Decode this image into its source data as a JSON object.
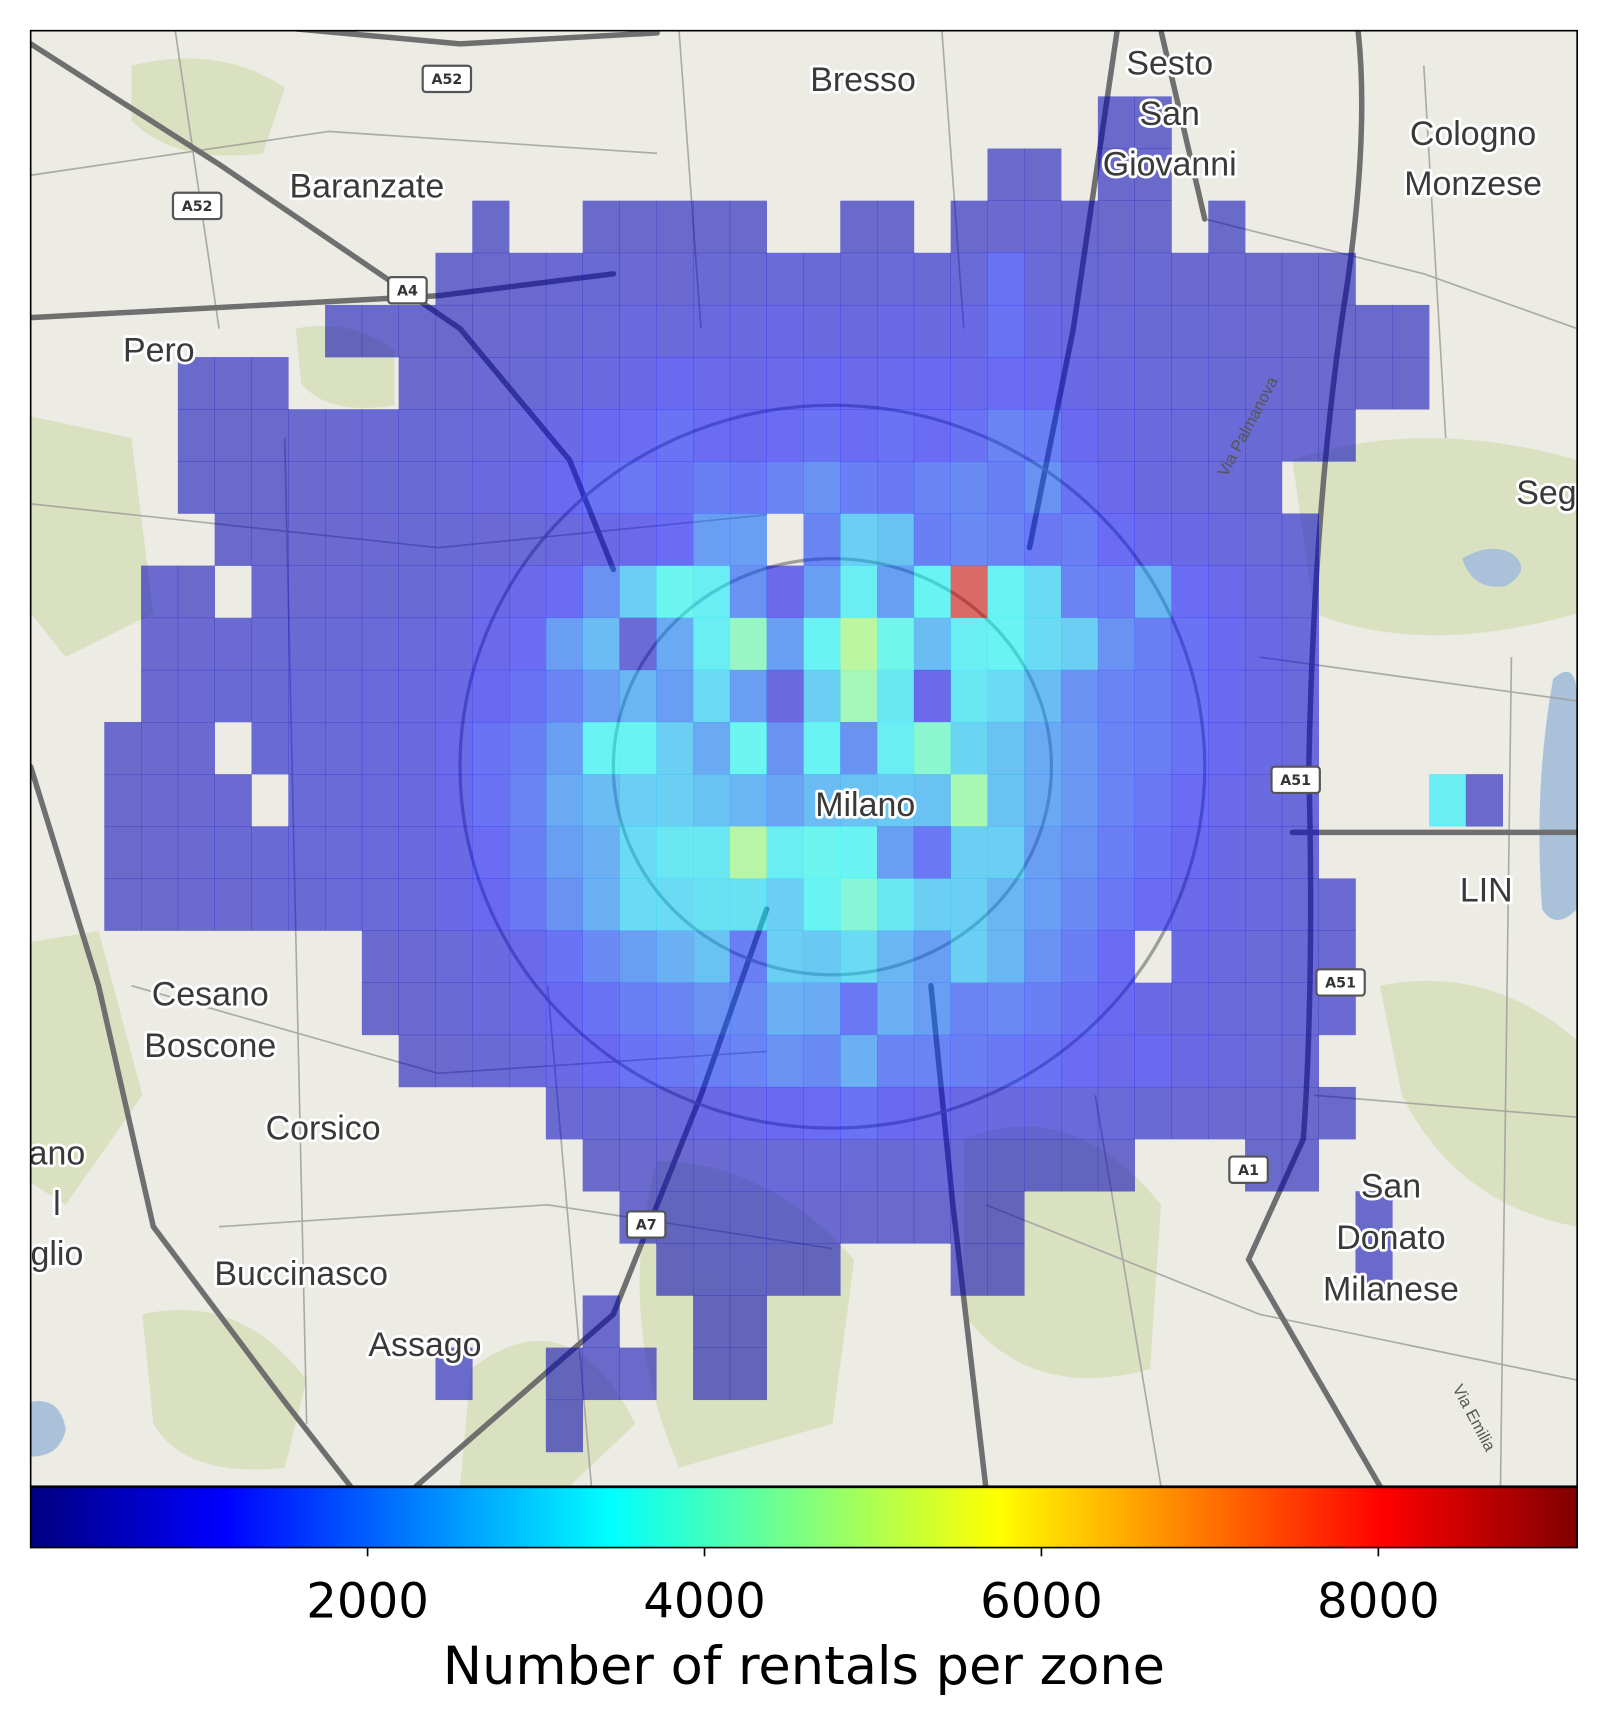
{
  "chart_data": {
    "type": "heatmap",
    "colormap": "jet",
    "z": [
      [
        null,
        null,
        null,
        null,
        null,
        null,
        null,
        null,
        null,
        null,
        null,
        null,
        null,
        null,
        null,
        null,
        null,
        null,
        null,
        null,
        null,
        null,
        null,
        null,
        null,
        null,
        null,
        null,
        null,
        500,
        450,
        null,
        null,
        null,
        null,
        null,
        null,
        null,
        null,
        null,
        null,
        null
      ],
      [
        null,
        null,
        null,
        null,
        null,
        null,
        null,
        null,
        null,
        null,
        null,
        null,
        null,
        null,
        null,
        null,
        null,
        null,
        null,
        null,
        null,
        null,
        null,
        null,
        null,
        null,
        500,
        480,
        null,
        520,
        500,
        null,
        null,
        null,
        null,
        null,
        null,
        null,
        null,
        null,
        null,
        null
      ],
      [
        null,
        null,
        null,
        null,
        null,
        null,
        null,
        null,
        null,
        null,
        null,
        null,
        450,
        null,
        null,
        500,
        500,
        520,
        500,
        480,
        null,
        null,
        500,
        520,
        null,
        520,
        550,
        600,
        550,
        500,
        480,
        null,
        450,
        null,
        null,
        null,
        null,
        null,
        null,
        null,
        null,
        null
      ],
      [
        null,
        null,
        null,
        null,
        null,
        null,
        null,
        null,
        null,
        null,
        null,
        500,
        520,
        550,
        600,
        620,
        600,
        580,
        620,
        650,
        700,
        680,
        650,
        700,
        650,
        700,
        1300,
        700,
        650,
        600,
        620,
        580,
        550,
        500,
        480,
        450,
        null,
        null,
        null,
        null,
        null,
        null
      ],
      [
        null,
        null,
        null,
        null,
        null,
        null,
        null,
        null,
        450,
        480,
        500,
        520,
        550,
        600,
        650,
        700,
        800,
        750,
        800,
        850,
        900,
        850,
        800,
        900,
        850,
        900,
        1300,
        900,
        800,
        700,
        650,
        620,
        600,
        580,
        550,
        500,
        500,
        480,
        null,
        null,
        null,
        null
      ],
      [
        null,
        null,
        null,
        null,
        500,
        520,
        480,
        null,
        null,
        null,
        520,
        550,
        600,
        650,
        750,
        850,
        900,
        1100,
        1000,
        950,
        1000,
        1100,
        1000,
        1050,
        1100,
        1000,
        1200,
        1100,
        900,
        800,
        750,
        700,
        650,
        600,
        550,
        520,
        500,
        480,
        null,
        null,
        null,
        null
      ],
      [
        null,
        null,
        null,
        null,
        480,
        500,
        520,
        550,
        580,
        600,
        650,
        700,
        750,
        850,
        950,
        1100,
        1200,
        1300,
        1200,
        1100,
        1200,
        1300,
        1200,
        1300,
        1200,
        1300,
        1600,
        1500,
        1100,
        900,
        800,
        750,
        700,
        650,
        600,
        550,
        null,
        null,
        null,
        null,
        null,
        null
      ],
      [
        null,
        null,
        null,
        null,
        480,
        500,
        520,
        550,
        580,
        620,
        650,
        700,
        800,
        900,
        1100,
        1300,
        1400,
        1300,
        1500,
        1400,
        1600,
        1800,
        1500,
        1400,
        1600,
        1700,
        1500,
        1800,
        1300,
        1000,
        800,
        750,
        700,
        650,
        null,
        null,
        null,
        null,
        null,
        null,
        null,
        null
      ],
      [
        null,
        null,
        null,
        null,
        null,
        500,
        520,
        550,
        580,
        600,
        620,
        650,
        600,
        700,
        800,
        900,
        1000,
        1200,
        2000,
        2000,
        null,
        1600,
        2800,
        2600,
        1500,
        1700,
        1600,
        1400,
        1500,
        1200,
        1000,
        900,
        800,
        700,
        650,
        null,
        null,
        null,
        null,
        null,
        null,
        null
      ],
      [
        null,
        null,
        null,
        550,
        500,
        null,
        550,
        580,
        600,
        620,
        650,
        700,
        900,
        1000,
        1200,
        1800,
        2800,
        3500,
        3300,
        1800,
        1000,
        2000,
        3300,
        2000,
        3400,
        8500,
        3400,
        3000,
        1600,
        1500,
        2400,
        1200,
        1000,
        800,
        700,
        null,
        null,
        null,
        null,
        null,
        null,
        null
      ],
      [
        null,
        null,
        null,
        550,
        580,
        600,
        620,
        650,
        680,
        700,
        750,
        800,
        1000,
        1200,
        2000,
        2500,
        700,
        2200,
        3300,
        4200,
        2000,
        3400,
        4800,
        3600,
        2500,
        3300,
        3400,
        3000,
        2800,
        1800,
        1500,
        1300,
        1100,
        900,
        750,
        null,
        null,
        null,
        null,
        null,
        null,
        null
      ],
      [
        null,
        null,
        null,
        550,
        600,
        620,
        650,
        700,
        720,
        750,
        800,
        900,
        1100,
        1300,
        1600,
        2000,
        2400,
        2000,
        3000,
        2000,
        800,
        2800,
        4400,
        3200,
        1000,
        3200,
        3000,
        2500,
        1800,
        1600,
        1500,
        1300,
        1100,
        900,
        750,
        null,
        null,
        null,
        null,
        null,
        null,
        null
      ],
      [
        null,
        null,
        500,
        550,
        580,
        null,
        650,
        700,
        720,
        750,
        800,
        1000,
        1300,
        1500,
        2000,
        3400,
        3400,
        2800,
        2200,
        3500,
        1800,
        3400,
        1800,
        3300,
        4000,
        2900,
        2600,
        2200,
        1900,
        1600,
        1500,
        1300,
        1100,
        900,
        750,
        null,
        null,
        null,
        null,
        null,
        null,
        null
      ],
      [
        null,
        null,
        500,
        550,
        580,
        600,
        null,
        700,
        720,
        750,
        800,
        1000,
        1300,
        1600,
        2200,
        2500,
        2800,
        2800,
        2600,
        2400,
        2100,
        2500,
        2600,
        2700,
        2600,
        4500,
        2600,
        2200,
        1900,
        1600,
        1400,
        1200,
        1000,
        850,
        750,
        null,
        null,
        null,
        3300,
        500,
        null,
        null
      ],
      [
        null,
        null,
        500,
        550,
        580,
        620,
        650,
        700,
        720,
        750,
        800,
        950,
        1200,
        1500,
        2000,
        2300,
        3000,
        3200,
        3200,
        4700,
        3300,
        3500,
        3400,
        2000,
        1400,
        2800,
        2800,
        2000,
        1800,
        1500,
        1300,
        1100,
        900,
        800,
        700,
        null,
        null,
        null,
        null,
        null,
        null,
        null
      ],
      [
        null,
        null,
        500,
        520,
        550,
        580,
        620,
        650,
        700,
        720,
        780,
        900,
        1100,
        1400,
        1800,
        2300,
        3000,
        3000,
        3100,
        3100,
        2800,
        3400,
        3900,
        3200,
        2800,
        2800,
        2400,
        2000,
        1700,
        1400,
        1200,
        1000,
        900,
        800,
        700,
        600,
        null,
        null,
        null,
        null,
        null,
        null
      ],
      [
        null,
        null,
        null,
        null,
        null,
        null,
        null,
        null,
        null,
        550,
        600,
        700,
        850,
        1000,
        1300,
        1700,
        2000,
        2300,
        2600,
        1500,
        2800,
        2700,
        3000,
        2400,
        2000,
        2800,
        2400,
        1800,
        1500,
        1200,
        null,
        900,
        800,
        700,
        650,
        600,
        null,
        null,
        null,
        null,
        null,
        null
      ],
      [
        null,
        null,
        null,
        null,
        null,
        null,
        null,
        null,
        null,
        500,
        550,
        650,
        750,
        900,
        1100,
        1300,
        1500,
        1600,
        1800,
        1700,
        2300,
        2200,
        1400,
        2300,
        2000,
        1600,
        1700,
        1500,
        1300,
        1100,
        900,
        800,
        750,
        700,
        650,
        600,
        null,
        null,
        null,
        null,
        null,
        null
      ],
      [
        null,
        null,
        null,
        null,
        null,
        null,
        null,
        null,
        null,
        null,
        500,
        550,
        650,
        750,
        900,
        1100,
        1300,
        1400,
        1500,
        1600,
        1800,
        1700,
        2300,
        1600,
        1600,
        1500,
        1400,
        1300,
        1200,
        1000,
        1100,
        900,
        800,
        700,
        600,
        null,
        null,
        null,
        null,
        null,
        null,
        null
      ],
      [
        null,
        null,
        null,
        null,
        null,
        null,
        null,
        null,
        null,
        null,
        null,
        null,
        null,
        null,
        600,
        650,
        700,
        800,
        900,
        1000,
        1100,
        1200,
        1300,
        1100,
        1000,
        900,
        850,
        800,
        750,
        700,
        650,
        600,
        580,
        550,
        520,
        500,
        null,
        null,
        null,
        null,
        null,
        null
      ],
      [
        null,
        null,
        null,
        null,
        null,
        null,
        null,
        null,
        null,
        null,
        null,
        null,
        null,
        null,
        null,
        500,
        550,
        580,
        600,
        650,
        700,
        750,
        700,
        650,
        700,
        650,
        600,
        550,
        520,
        500,
        null,
        null,
        null,
        480,
        500,
        null,
        null,
        null,
        null,
        null,
        null,
        null
      ],
      [
        null,
        null,
        null,
        null,
        null,
        null,
        null,
        null,
        null,
        null,
        null,
        null,
        null,
        null,
        null,
        null,
        500,
        520,
        550,
        580,
        600,
        580,
        520,
        500,
        520,
        500,
        480,
        null,
        null,
        null,
        null,
        null,
        null,
        null,
        null,
        null,
        500,
        null,
        null,
        null,
        null,
        null
      ],
      [
        null,
        null,
        null,
        null,
        null,
        null,
        null,
        null,
        null,
        null,
        null,
        null,
        null,
        null,
        null,
        null,
        null,
        500,
        520,
        550,
        500,
        480,
        null,
        null,
        null,
        480,
        500,
        null,
        null,
        null,
        null,
        null,
        null,
        null,
        null,
        null,
        520,
        null,
        null,
        null,
        null,
        null
      ],
      [
        null,
        null,
        null,
        null,
        null,
        null,
        null,
        null,
        null,
        null,
        null,
        null,
        null,
        null,
        null,
        480,
        null,
        null,
        500,
        480,
        null,
        null,
        null,
        null,
        null,
        null,
        null,
        null,
        null,
        null,
        null,
        null,
        null,
        null,
        null,
        null,
        null,
        null,
        null,
        null,
        null,
        null
      ],
      [
        null,
        null,
        null,
        null,
        null,
        null,
        null,
        null,
        null,
        null,
        null,
        480,
        null,
        null,
        480,
        500,
        480,
        null,
        500,
        480,
        null,
        null,
        null,
        null,
        null,
        null,
        null,
        null,
        null,
        null,
        null,
        null,
        null,
        null,
        null,
        null,
        null,
        null,
        null,
        null,
        null,
        null
      ],
      [
        null,
        null,
        null,
        null,
        null,
        null,
        null,
        null,
        null,
        null,
        null,
        null,
        null,
        null,
        480,
        null,
        null,
        null,
        null,
        null,
        null,
        null,
        null,
        null,
        null,
        null,
        null,
        null,
        null,
        null,
        null,
        null,
        null,
        null,
        null,
        null,
        null,
        null,
        null,
        null,
        null,
        null
      ]
    ],
    "colorbar": {
      "label": "Number of rentals per zone",
      "lim": [
        0,
        9180
      ],
      "ticks": [
        2000,
        4000,
        6000,
        8000
      ]
    },
    "places": [
      [
        "Bresso"
      ],
      [
        "Sesto",
        "San",
        "Giovanni"
      ],
      [
        "Baranzate"
      ],
      [
        "Cologno",
        "Monzese"
      ],
      [
        "Pero"
      ],
      [
        "Seg"
      ],
      [
        "Milano"
      ],
      [
        "LIN"
      ],
      [
        "Cesano",
        "Boscone"
      ],
      [
        "Corsico"
      ],
      [
        "Buccinasco"
      ],
      [
        "Assago"
      ],
      [
        "San",
        "Donato",
        "Milanese"
      ],
      [
        "ano",
        "l",
        "glio"
      ]
    ],
    "road_labels": [
      "A52",
      "A52",
      "A4",
      "A51",
      "A51",
      "A1",
      "A7"
    ],
    "street_labels": [
      "Via Palmanova",
      "Via Emilia"
    ]
  }
}
